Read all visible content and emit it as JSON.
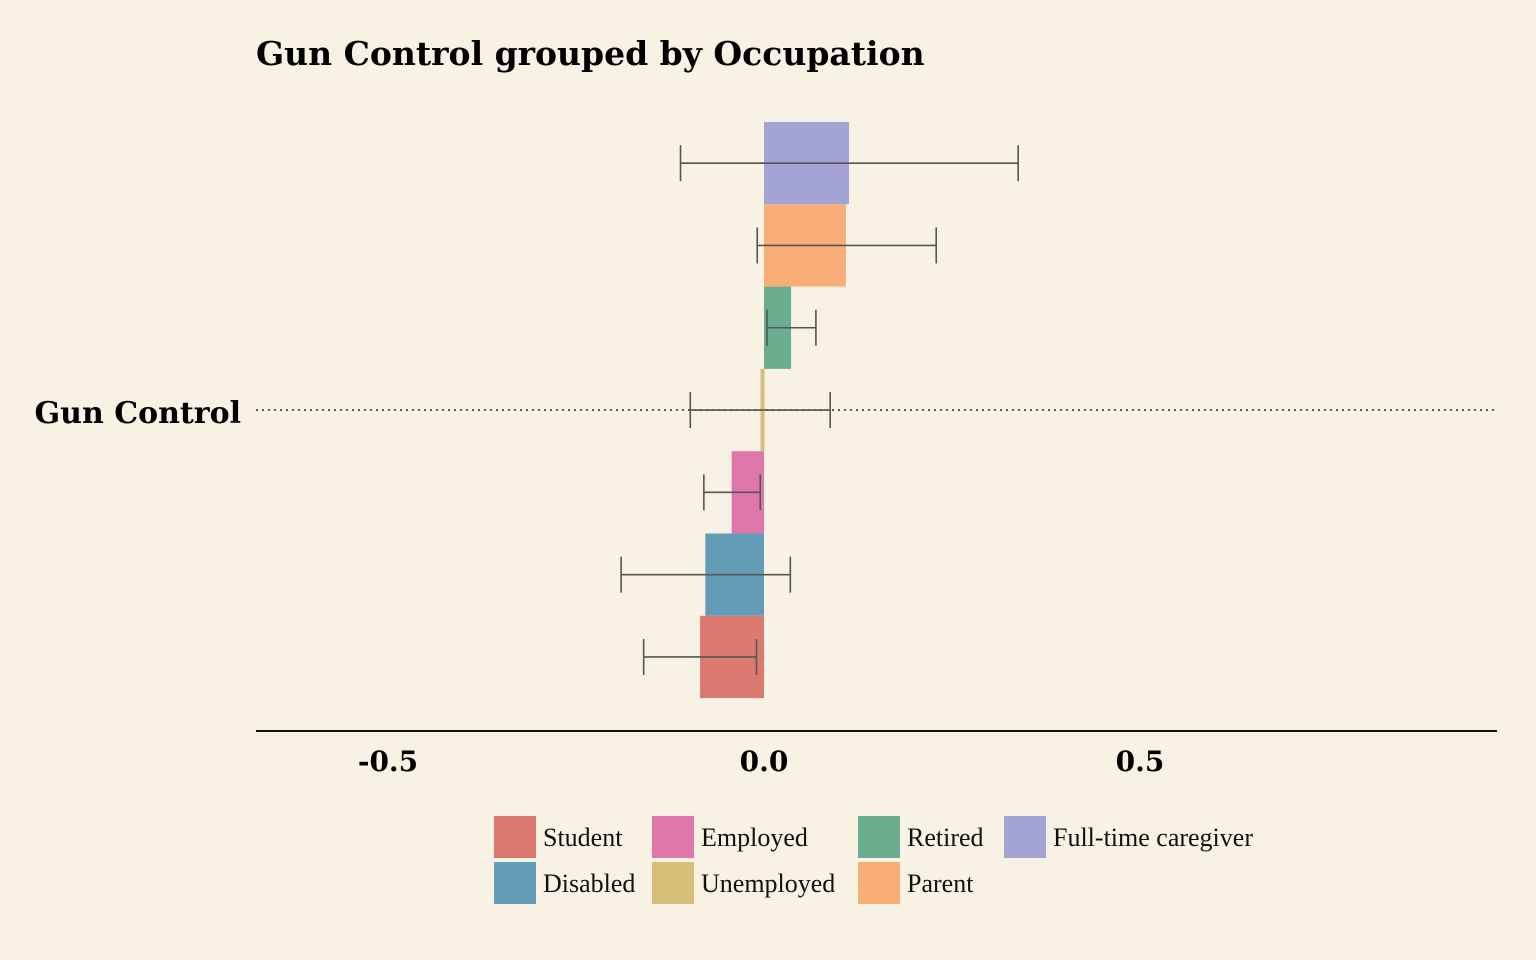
{
  "chart_data": {
    "type": "bar",
    "orientation": "horizontal",
    "title": "Gun Control grouped by Occupation",
    "xlabel": "",
    "ylabel": "",
    "category": "Gun Control",
    "xlim": [
      -0.67,
      0.98
    ],
    "xticks": [
      {
        "value": -0.5,
        "label": "-0.5"
      },
      {
        "value": 0.0,
        "label": "0.0"
      },
      {
        "value": 0.5,
        "label": "0.5"
      }
    ],
    "grid": false,
    "legend_position": "bottom",
    "series": [
      {
        "name": "Full-time caregiver",
        "value": 0.113,
        "ci": [
          -0.111,
          0.338
        ],
        "color": "#a4a4d4"
      },
      {
        "name": "Parent",
        "value": 0.109,
        "ci": [
          -0.009,
          0.229
        ],
        "color": "#f9ae77"
      },
      {
        "name": "Retired",
        "value": 0.036,
        "ci": [
          0.004,
          0.069
        ],
        "color": "#6aae8f"
      },
      {
        "name": "Unemployed",
        "value": -0.004,
        "ci": [
          -0.098,
          0.088
        ],
        "color": "#d6bf78"
      },
      {
        "name": "Employed",
        "value": -0.043,
        "ci": [
          -0.08,
          -0.005
        ],
        "color": "#e077ab"
      },
      {
        "name": "Disabled",
        "value": -0.078,
        "ci": [
          -0.19,
          0.035
        ],
        "color": "#629cb6"
      },
      {
        "name": "Student",
        "value": -0.085,
        "ci": [
          -0.16,
          -0.01
        ],
        "color": "#dc7a72"
      }
    ],
    "legend_order": [
      "Student",
      "Employed",
      "Retired",
      "Full-time caregiver",
      "Disabled",
      "Unemployed",
      "Parent"
    ]
  }
}
